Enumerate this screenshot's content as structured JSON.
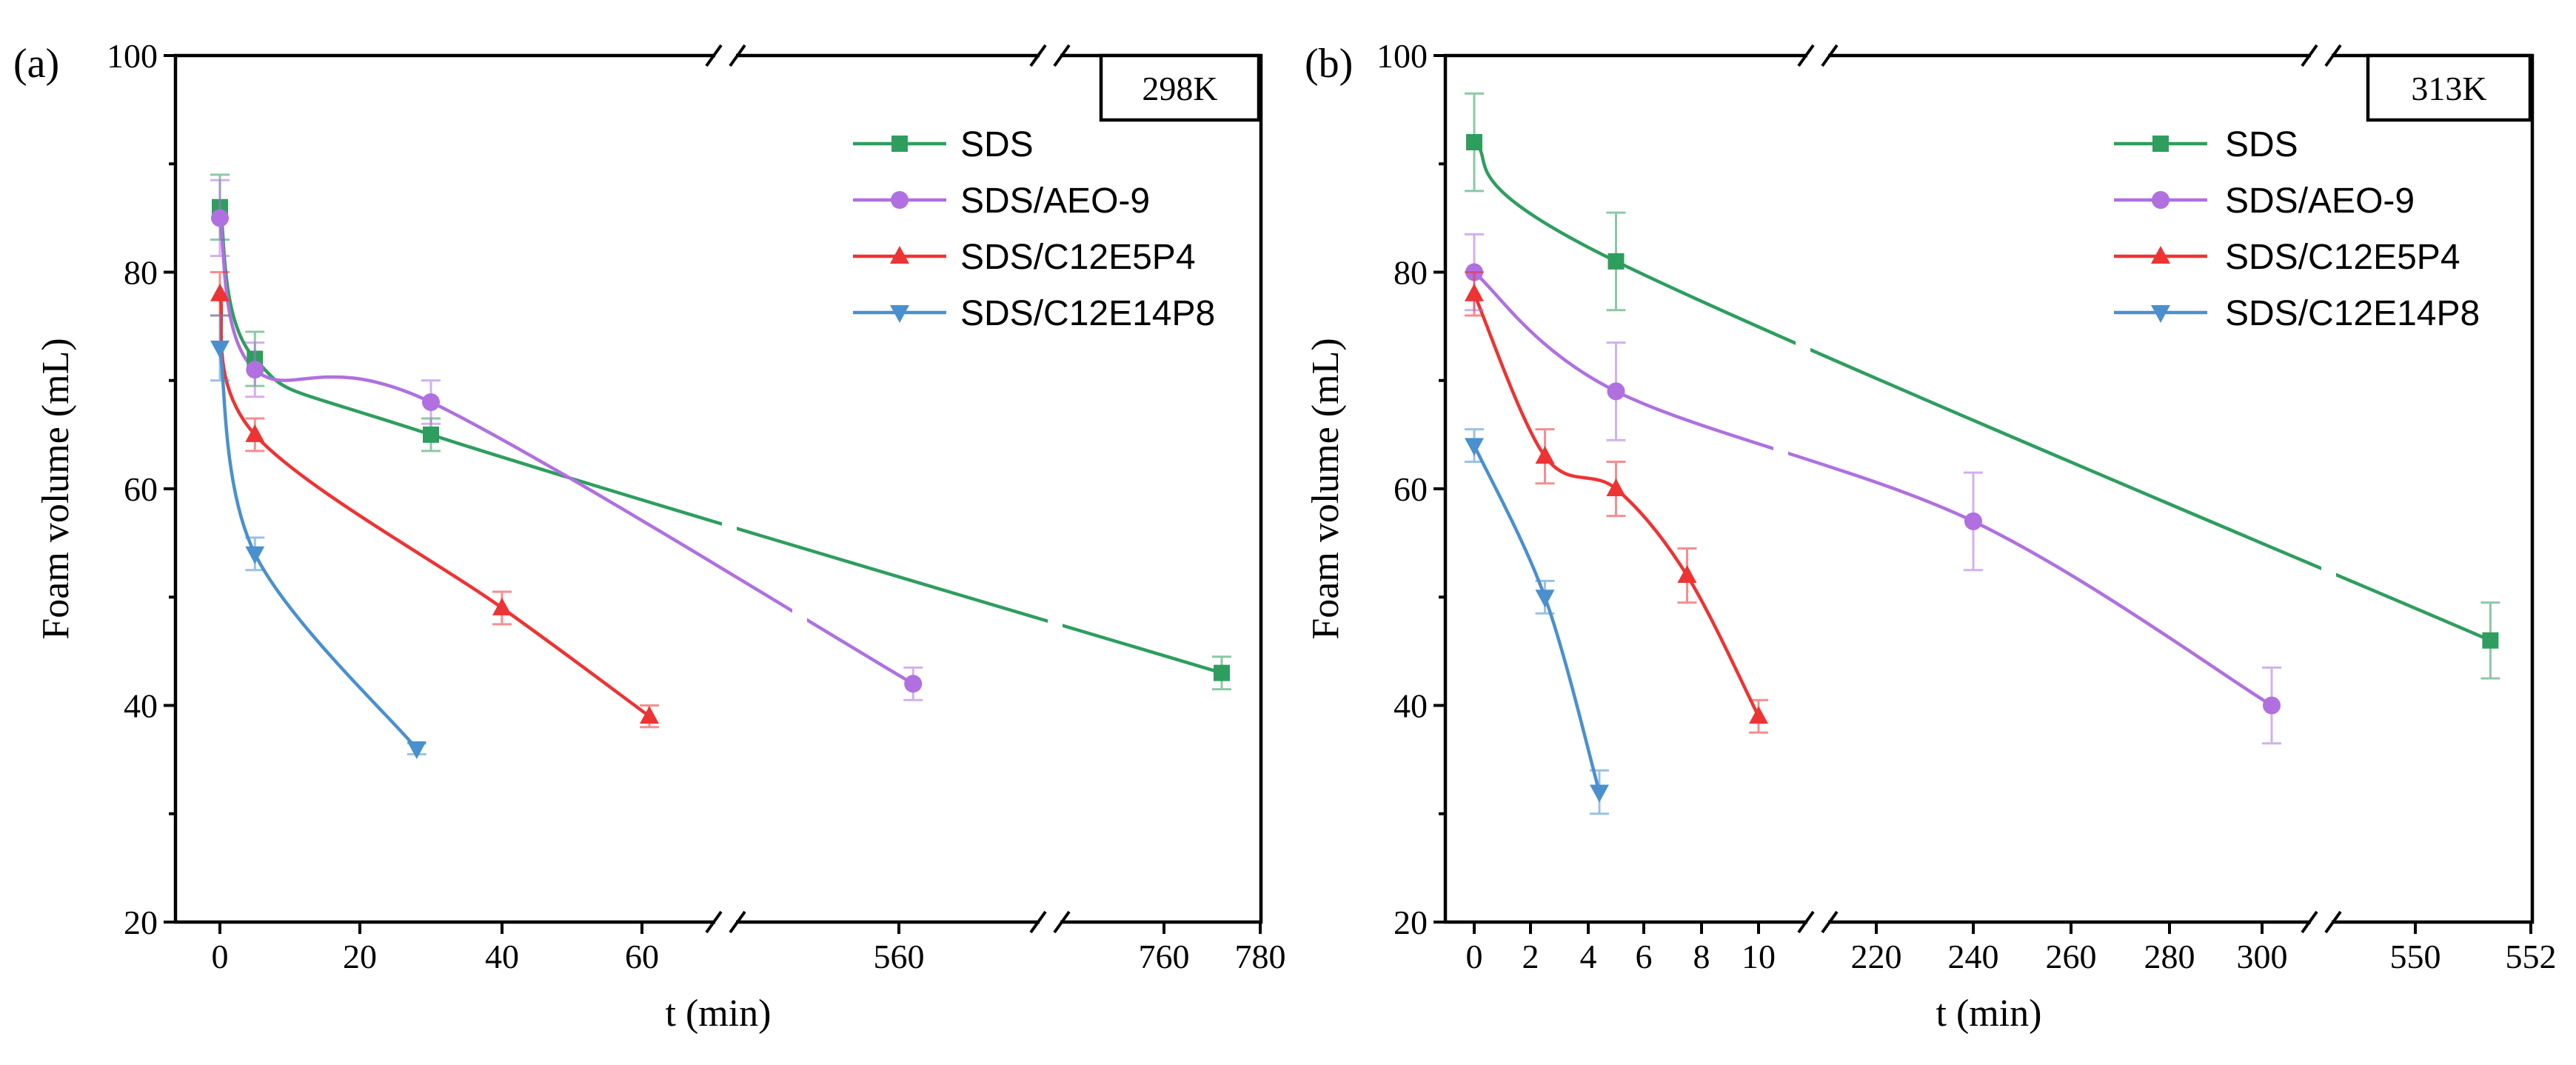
{
  "chart_data": [
    {
      "type": "line",
      "panel": "(a)",
      "temperature": "298K",
      "xlabel": "t (min)",
      "ylabel": "Foam volume (mL)",
      "ylim": [
        20,
        100
      ],
      "yticks": [
        20,
        40,
        60,
        80,
        100
      ],
      "xtick_labels": [
        "0",
        "20",
        "40",
        "60",
        "560",
        "760",
        "780"
      ],
      "x_axis_breaks": 2,
      "legend": [
        "SDS",
        "SDS/AEO-9",
        "SDS/C12E5P4",
        "SDS/C12E14P8"
      ],
      "series": [
        {
          "name": "SDS",
          "color": "#2e9e5e",
          "marker": "square",
          "x": [
            0,
            5,
            30,
            772
          ],
          "y": [
            86,
            72,
            65,
            43
          ],
          "err": [
            3,
            2.5,
            1.5,
            1.5
          ]
        },
        {
          "name": "SDS/AEO-9",
          "color": "#b070e0",
          "marker": "circle",
          "x": [
            0,
            5,
            30,
            563
          ],
          "y": [
            85,
            71,
            68,
            42
          ],
          "err": [
            3.5,
            2.5,
            2,
            1.5
          ]
        },
        {
          "name": "SDS/C12E5P4",
          "color": "#ee3333",
          "marker": "triangle-up",
          "x": [
            0,
            5,
            40,
            61
          ],
          "y": [
            78,
            65,
            49,
            39
          ],
          "err": [
            2,
            1.5,
            1.5,
            1
          ]
        },
        {
          "name": "SDS/C12E14P8",
          "color": "#4a90cf",
          "marker": "triangle-down",
          "x": [
            0,
            5,
            28
          ],
          "y": [
            73,
            54,
            36
          ],
          "err": [
            3,
            1.5,
            0.5
          ]
        }
      ]
    },
    {
      "type": "line",
      "panel": "(b)",
      "temperature": "313K",
      "xlabel": "t (min)",
      "ylabel": "Foam volume (mL)",
      "ylim": [
        20,
        100
      ],
      "yticks": [
        20,
        40,
        60,
        80,
        100
      ],
      "xtick_labels": [
        "0",
        "2",
        "4",
        "6",
        "8",
        "10",
        "220",
        "240",
        "260",
        "280",
        "300",
        "550",
        "552"
      ],
      "x_axis_breaks": 2,
      "legend": [
        "SDS",
        "SDS/AEO-9",
        "SDS/C12E5P4",
        "SDS/C12E14P8"
      ],
      "series": [
        {
          "name": "SDS",
          "color": "#2e9e5e",
          "marker": "square",
          "x": [
            0,
            5,
            551.3
          ],
          "y": [
            92,
            81,
            46
          ],
          "err": [
            4.5,
            4.5,
            3.5
          ]
        },
        {
          "name": "SDS/AEO-9",
          "color": "#b070e0",
          "marker": "circle",
          "x": [
            0,
            5,
            240,
            302
          ],
          "y": [
            80,
            69,
            57,
            40
          ],
          "err": [
            3.5,
            4.5,
            4.5,
            3.5
          ]
        },
        {
          "name": "SDS/C12E5P4",
          "color": "#ee3333",
          "marker": "triangle-up",
          "x": [
            0,
            2.5,
            5,
            7.5,
            10
          ],
          "y": [
            78,
            63,
            60,
            52,
            39
          ],
          "err": [
            2,
            2.5,
            2.5,
            2.5,
            1.5
          ]
        },
        {
          "name": "SDS/C12E14P8",
          "color": "#4a90cf",
          "marker": "triangle-down",
          "x": [
            0,
            2.5,
            4.4
          ],
          "y": [
            64,
            50,
            32
          ],
          "err": [
            1.5,
            1.5,
            2
          ]
        }
      ]
    }
  ]
}
